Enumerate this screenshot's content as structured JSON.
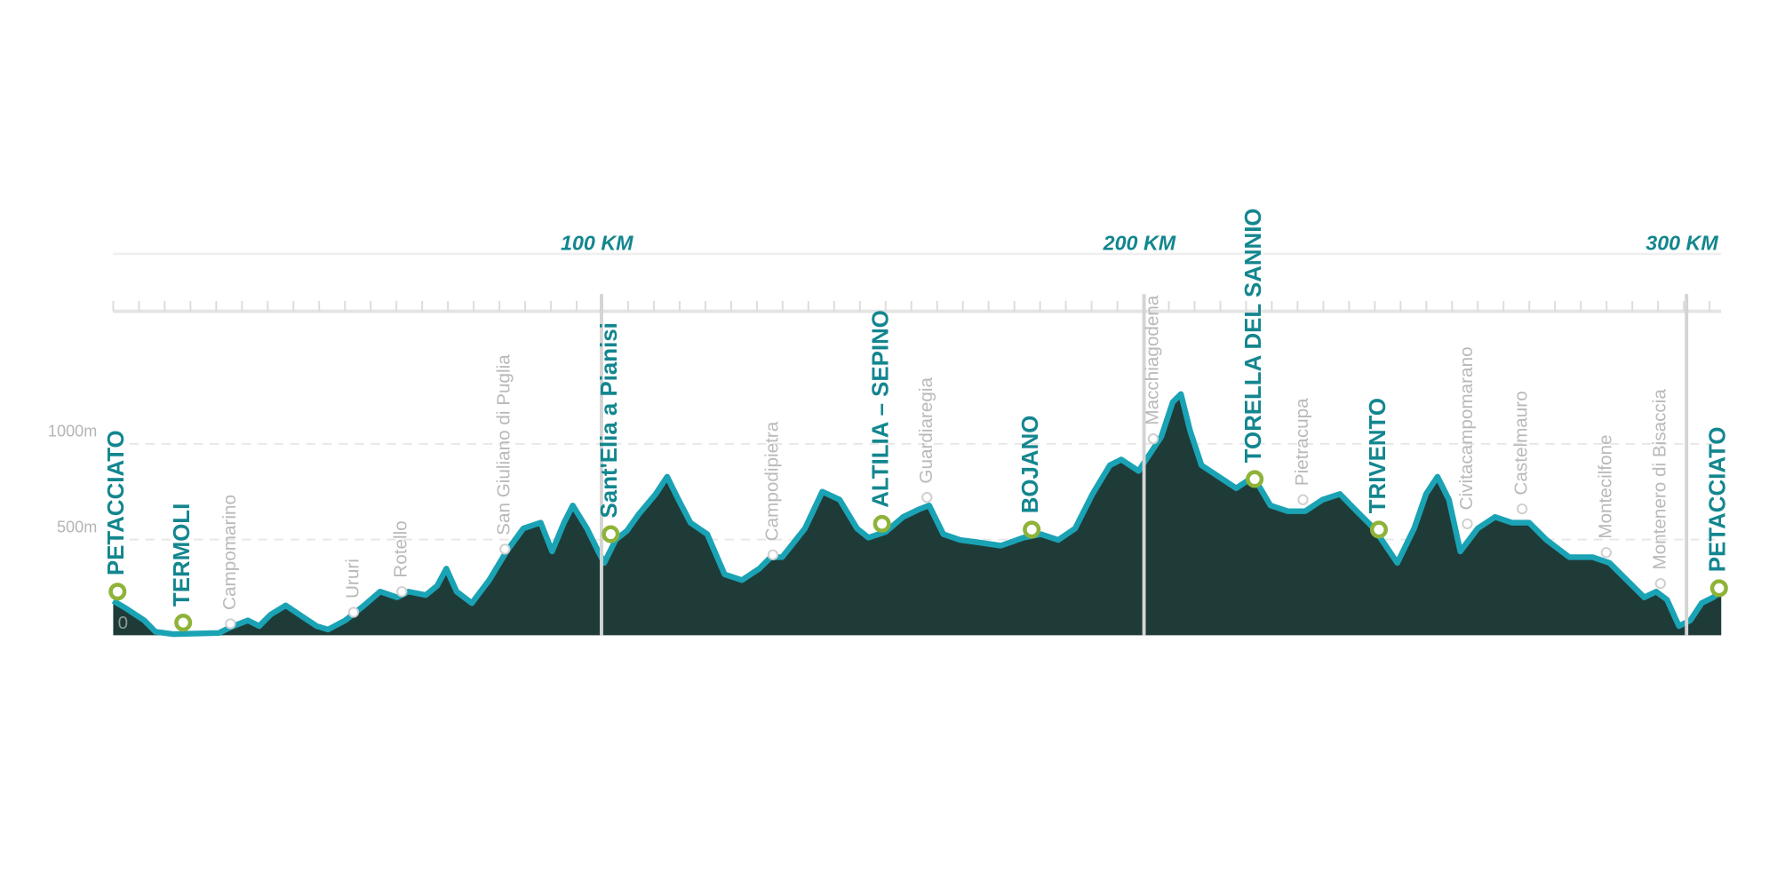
{
  "chart_data": {
    "type": "area",
    "xlim": [
      10,
      306.4
    ],
    "ylim": [
      0,
      1300
    ],
    "xticks": [
      {
        "value": 100,
        "label": "100 KM"
      },
      {
        "value": 200,
        "label": "200 KM"
      },
      {
        "value": 300,
        "label": "300 KM"
      }
    ],
    "yticks": [
      0,
      {
        "value": 500,
        "label": "500m"
      },
      {
        "value": 1000,
        "label": "1000m"
      }
    ],
    "grid": true,
    "series": [
      {
        "color": "#1aa3b5",
        "fill": "#1f3b38",
        "x": [
          10.0,
          12.5,
          15.7,
          17.8,
          21.0,
          29.5,
          31.6,
          34.8,
          36.9,
          39.0,
          41.8,
          44.3,
          47.5,
          49.6,
          52.8,
          56.0,
          59.2,
          62.3,
          64.4,
          67.6,
          69.7,
          71.4,
          73.3,
          76.1,
          79.3,
          82.5,
          85.6,
          88.8,
          90.9,
          93.1,
          94.7,
          97.3,
          99.4,
          100.5,
          102.6,
          104.7,
          106.8,
          110.0,
          112.1,
          114.2,
          116.4,
          119.5,
          122.7,
          125.9,
          129.1,
          131.2,
          133.3,
          137.5,
          140.7,
          143.9,
          147.1,
          149.2,
          152.4,
          155.6,
          158.7,
          160.4,
          163.0,
          166.1,
          169.3,
          173.6,
          177.8,
          181.0,
          184.2,
          187.3,
          190.5,
          193.7,
          195.8,
          199.0,
          201.1,
          203.2,
          205.3,
          206.8,
          208.5,
          210.6,
          213.8,
          217.0,
          220.2,
          223.3,
          226.5,
          229.7,
          232.9,
          236.1,
          239.2,
          242.4,
          246.7,
          249.8,
          252.0,
          254.1,
          256.2,
          258.3,
          261.5,
          264.7,
          267.8,
          271.0,
          274.2,
          278.4,
          282.7,
          285.8,
          289.0,
          292.2,
          294.4,
          296.4,
          298.6,
          300.7,
          302.8,
          304.9,
          306.4
        ],
        "values": [
          180,
          138,
          78,
          18,
          6,
          12,
          42,
          78,
          48,
          108,
          156,
          108,
          48,
          30,
          78,
          150,
          228,
          198,
          228,
          210,
          258,
          348,
          228,
          168,
          288,
          438,
          558,
          588,
          438,
          588,
          678,
          558,
          438,
          378,
          498,
          546,
          630,
          738,
          828,
          708,
          588,
          528,
          318,
          288,
          348,
          408,
          408,
          558,
          750,
          708,
          558,
          510,
          540,
          618,
          660,
          678,
          528,
          498,
          486,
          468,
          510,
          528,
          498,
          558,
          738,
          888,
          918,
          858,
          948,
          1038,
          1218,
          1260,
          1068,
          888,
          828,
          768,
          828,
          678,
          648,
          648,
          708,
          738,
          648,
          558,
          378,
          558,
          738,
          828,
          708,
          438,
          558,
          618,
          588,
          588,
          498,
          408,
          408,
          378,
          288,
          198,
          228,
          186,
          48,
          78,
          168,
          198,
          228
        ]
      }
    ],
    "points": [
      {
        "label": "PETACCIATO",
        "km": 10.8,
        "elevation": 228,
        "major": true
      },
      {
        "label": "TERMOLI",
        "km": 22.9,
        "elevation": 66,
        "major": true
      },
      {
        "label": "Campomarino",
        "km": 31.6,
        "elevation": 60,
        "major": false
      },
      {
        "label": "Ururi",
        "km": 54.3,
        "elevation": 120,
        "major": false
      },
      {
        "label": "Rotello",
        "km": 63.2,
        "elevation": 228,
        "major": false
      },
      {
        "label": "San Giuliano di Puglia",
        "km": 82.2,
        "elevation": 450,
        "major": false
      },
      {
        "label": "Sant'Elia a Pianisi",
        "km": 101.7,
        "elevation": 528,
        "major": true
      },
      {
        "label": "Campodipietra",
        "km": 131.6,
        "elevation": 420,
        "major": false
      },
      {
        "label": "ALTILIA – SEPINO",
        "km": 151.7,
        "elevation": 582,
        "major": true
      },
      {
        "label": "Guardiaregia",
        "km": 160.0,
        "elevation": 720,
        "major": false
      },
      {
        "label": "BOJANO",
        "km": 179.3,
        "elevation": 552,
        "major": true
      },
      {
        "label": "Macchiagodena",
        "km": 201.7,
        "elevation": 1026,
        "major": false
      },
      {
        "label": "TORELLA DEL SANNIO",
        "km": 220.4,
        "elevation": 816,
        "major": true
      },
      {
        "label": "Pietracupa",
        "km": 229.3,
        "elevation": 708,
        "major": false
      },
      {
        "label": "TRIVENTO",
        "km": 243.3,
        "elevation": 552,
        "major": true
      },
      {
        "label": "Civitacampomarano",
        "km": 259.6,
        "elevation": 582,
        "major": false
      },
      {
        "label": "Castelmauro",
        "km": 269.7,
        "elevation": 660,
        "major": false
      },
      {
        "label": "Montecilfone",
        "km": 285.2,
        "elevation": 432,
        "major": false
      },
      {
        "label": "Montenero di Bisaccia",
        "km": 295.2,
        "elevation": 270,
        "major": false
      },
      {
        "label": "PETACCIATO",
        "km": 306.0,
        "elevation": 246,
        "major": true
      }
    ]
  }
}
